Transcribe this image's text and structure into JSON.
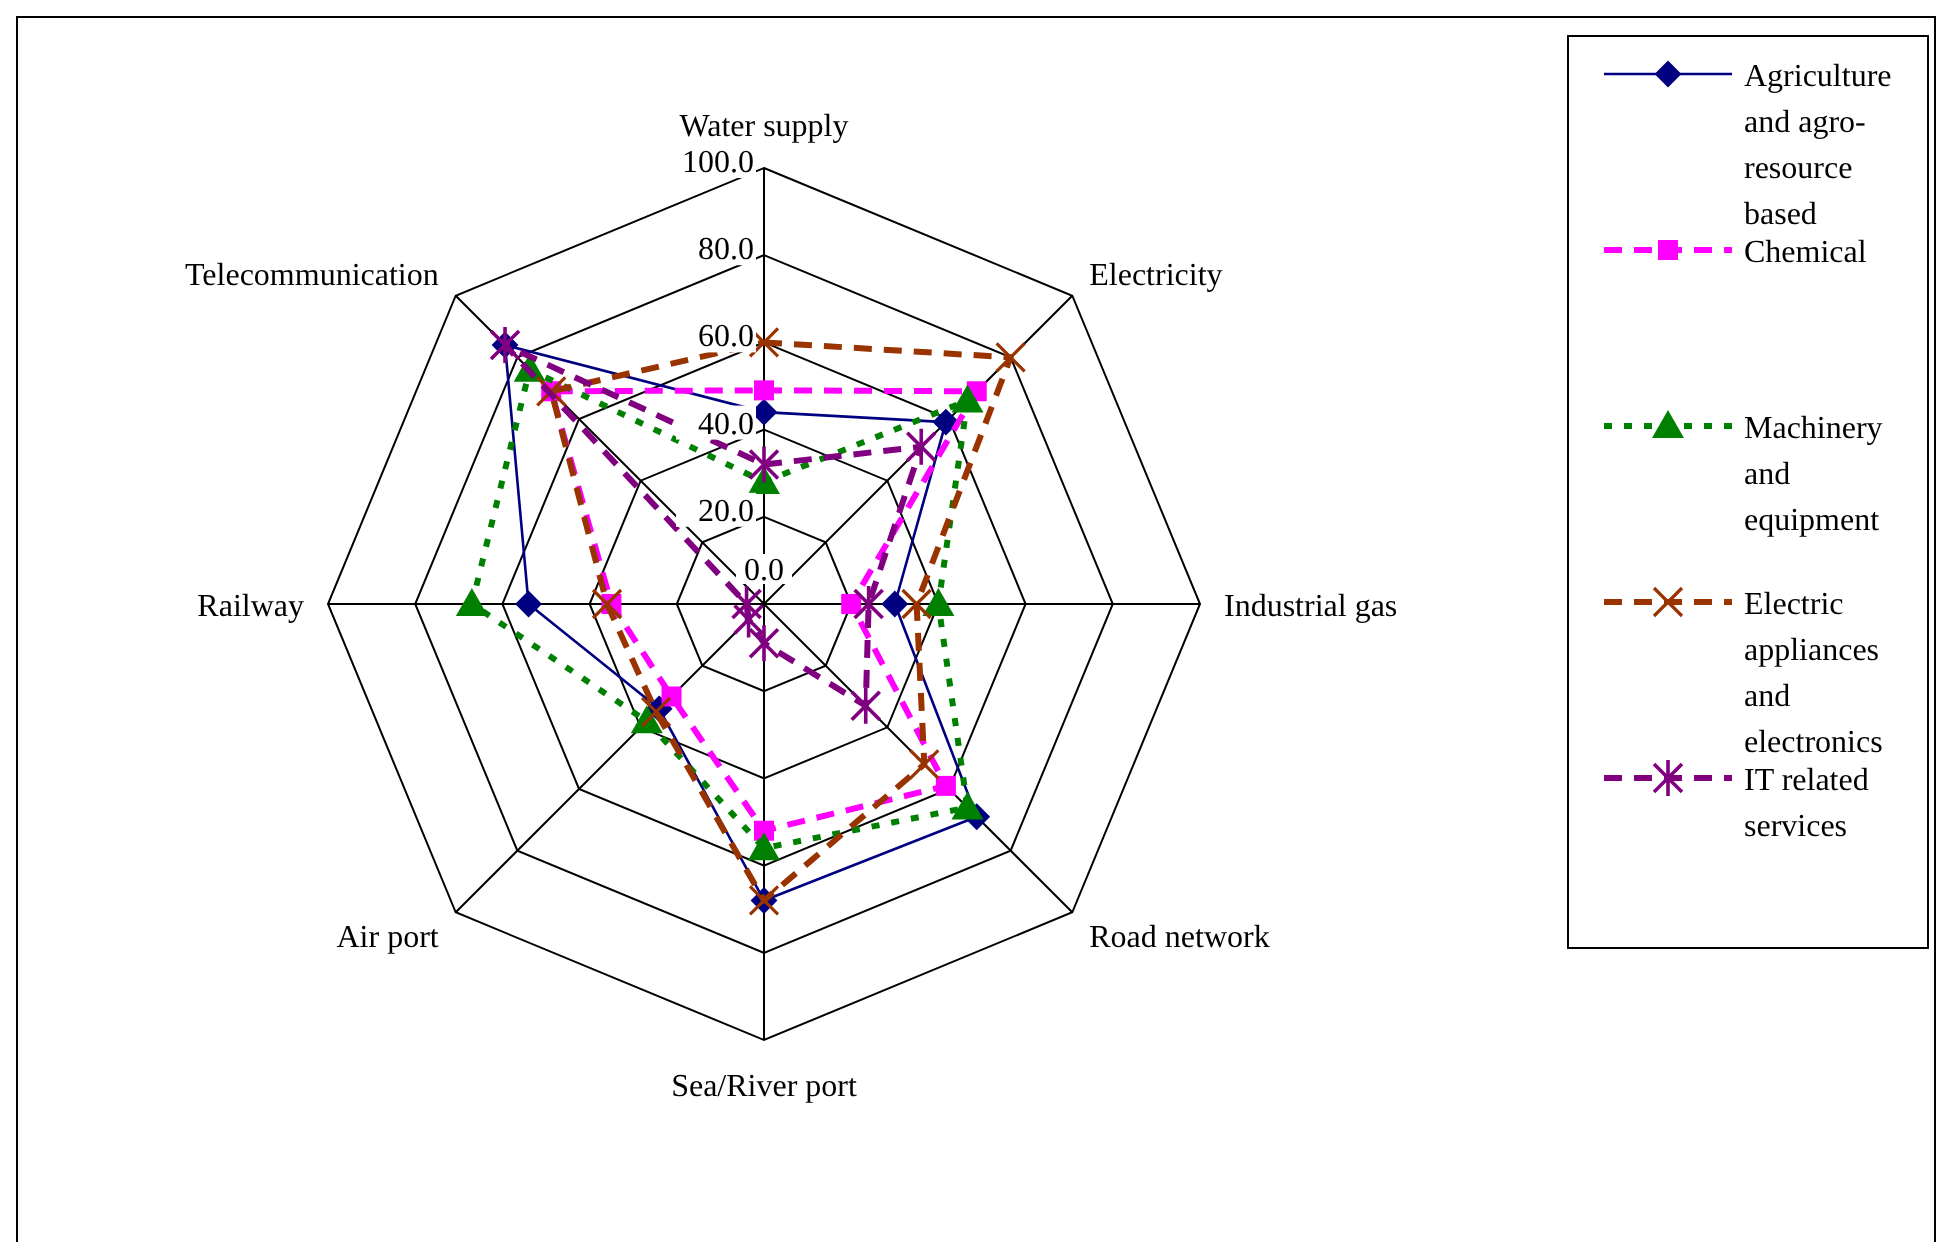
{
  "chart_data": {
    "type": "radar",
    "categories": [
      "Water supply",
      "Electricity",
      "Industrial gas",
      "Road network",
      "Sea/River port",
      "Air port",
      "Railway",
      "Telecommunication"
    ],
    "ylim": [
      0,
      100
    ],
    "yticks": [
      {
        "value": 0,
        "label": "0.0"
      },
      {
        "value": 20,
        "label": "20.0"
      },
      {
        "value": 40,
        "label": "40.0"
      },
      {
        "value": 60,
        "label": "60.0"
      },
      {
        "value": 80,
        "label": "80.0"
      },
      {
        "value": 100,
        "label": "100.0"
      }
    ],
    "grid": true,
    "legend": "right",
    "series": [
      {
        "name": "Agriculture and agro-resource based",
        "color": "#000080",
        "marker": "diamond",
        "line_style": "solid",
        "values": [
          44,
          59,
          30,
          69,
          68,
          34,
          54,
          84
        ]
      },
      {
        "name": "Chemical",
        "color": "#ff00ff",
        "marker": "square",
        "line_style": "dashed",
        "values": [
          49,
          69,
          20,
          59,
          52,
          30,
          35,
          69
        ]
      },
      {
        "name": "Machinery and equipment",
        "color": "#008000",
        "marker": "triangle",
        "line_style": "dotted",
        "values": [
          28,
          66,
          40,
          66,
          56,
          38,
          67,
          76
        ]
      },
      {
        "name": "Electric appliances and electronics",
        "color": "#993300",
        "marker": "cross",
        "line_style": "dashed",
        "values": [
          60,
          80,
          35,
          52,
          68,
          35,
          36,
          69
        ]
      },
      {
        "name": "IT related services",
        "color": "#800080",
        "marker": "star",
        "line_style": "dashed",
        "values": [
          32,
          51,
          24,
          33,
          9,
          5,
          4,
          84
        ]
      }
    ]
  }
}
